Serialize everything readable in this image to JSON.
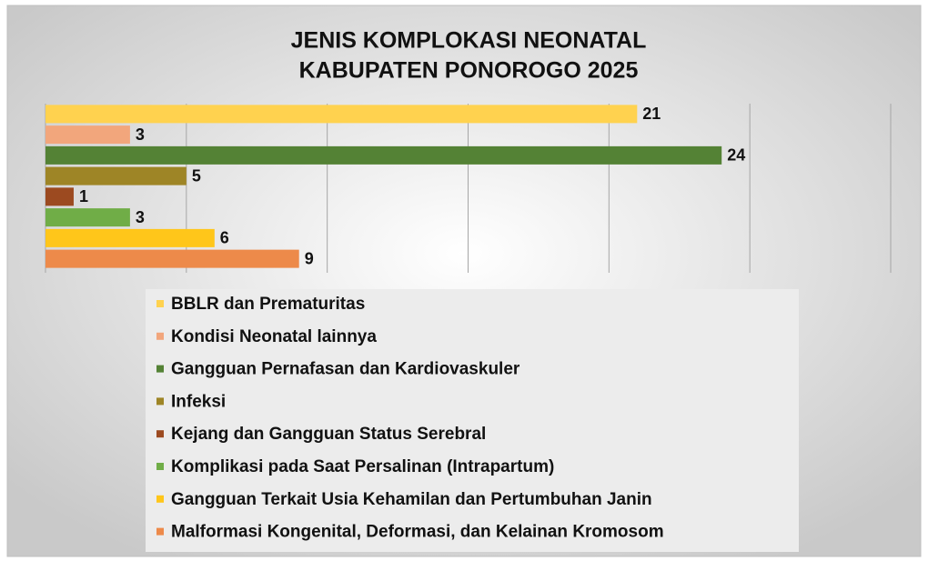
{
  "chart_data": {
    "type": "bar",
    "orientation": "horizontal",
    "title": [
      "JENIS KOMPLOKASI NEONATAL",
      "KABUPATEN PONOROGO 2025"
    ],
    "series": [
      {
        "name": "BBLR dan Prematuritas",
        "color": "#ffd24f",
        "values": [
          21
        ]
      },
      {
        "name": "Kondisi Neonatal lainnya",
        "color": "#f2a67c",
        "values": [
          3
        ]
      },
      {
        "name": "Gangguan Pernafasan dan Kardiovaskuler",
        "color": "#548235",
        "values": [
          24
        ]
      },
      {
        "name": "Infeksi",
        "color": "#9e8526",
        "values": [
          5
        ]
      },
      {
        "name": "Kejang dan Gangguan Status Serebral",
        "color": "#9c4a20",
        "values": [
          1
        ]
      },
      {
        "name": "Komplikasi pada Saat Persalinan (Intrapartum)",
        "color": "#70ad47",
        "values": [
          3
        ]
      },
      {
        "name": "Gangguan Terkait Usia Kehamilan dan Pertumbuhan Janin",
        "color": "#ffc61a",
        "values": [
          6
        ]
      },
      {
        "name": "Malformasi Kongenital, Deformasi, dan Kelainan Kromosom",
        "color": "#ed8a4a",
        "values": [
          9
        ]
      }
    ],
    "xlim": [
      0,
      30
    ],
    "xticks": [
      0,
      5,
      10,
      15,
      20,
      25,
      30
    ],
    "grid": true,
    "legend": "bottom"
  }
}
